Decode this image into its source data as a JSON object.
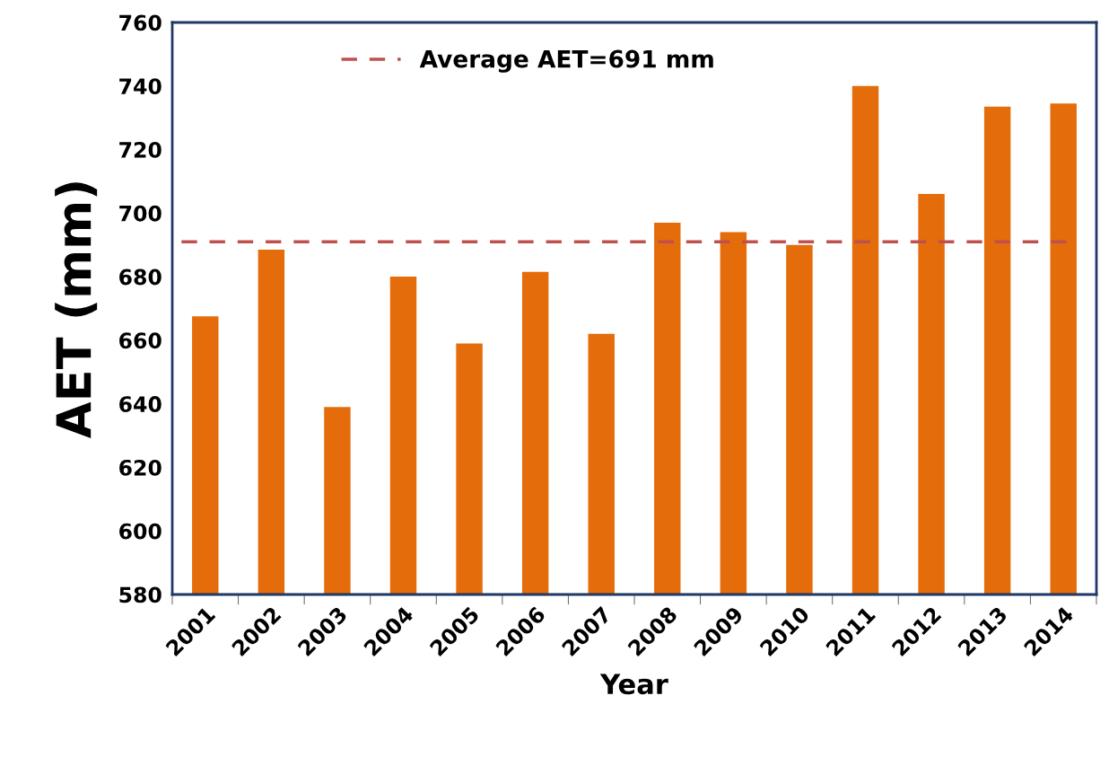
{
  "chart_data": {
    "type": "bar",
    "xlabel": "Year",
    "ylabel": "AET (mm)",
    "categories": [
      "2001",
      "2002",
      "2003",
      "2004",
      "2005",
      "2006",
      "2007",
      "2008",
      "2009",
      "2010",
      "2011",
      "2012",
      "2013",
      "2014"
    ],
    "values": [
      667.5,
      688.5,
      639,
      680,
      659,
      681.5,
      662,
      697,
      694,
      690,
      740,
      706,
      733.5,
      734.5
    ],
    "color": "#e46c0a",
    "ylim": [
      580,
      760
    ],
    "yticks": [
      580,
      600,
      620,
      640,
      660,
      680,
      700,
      720,
      740,
      760
    ],
    "grid": false,
    "legend": "top left",
    "ref_lines": [
      {
        "axis": "y",
        "value": 691,
        "label": "Average AET=691 mm",
        "color": "#c0504d",
        "line_style": "dashed"
      }
    ]
  }
}
